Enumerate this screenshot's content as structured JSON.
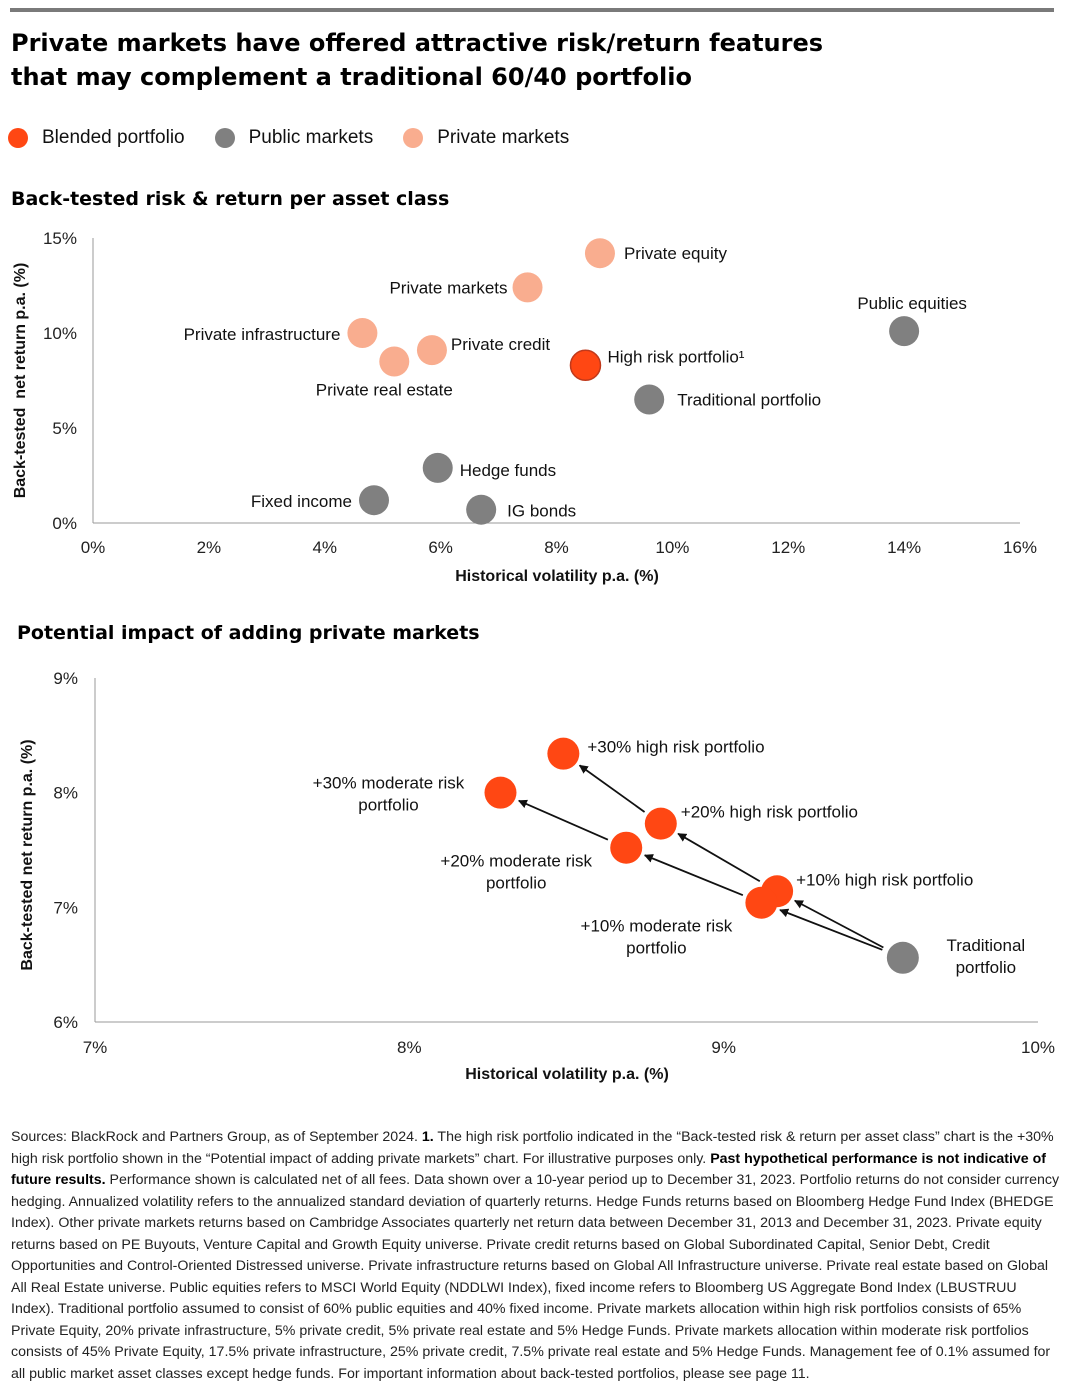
{
  "title_line1": "Private markets have offered attractive risk/return features",
  "title_line2": "that may complement a traditional 60/40 portfolio",
  "legend": [
    {
      "label": "Blended portfolio",
      "color": "#ff4713"
    },
    {
      "label": "Public markets",
      "color": "#808080"
    },
    {
      "label": "Private markets",
      "color": "#f9ad8f"
    }
  ],
  "colors": {
    "blended": "#ff4713",
    "public": "#808080",
    "private": "#f9ad8f"
  },
  "chart_data": [
    {
      "type": "scatter",
      "title": "Back-tested risk & return per asset class",
      "xlabel": "Historical volatility p.a. (%)",
      "ylabel": "Back-tested  net return p.a. (%)",
      "xlim": [
        0,
        16
      ],
      "ylim": [
        0,
        15
      ],
      "xticks": [
        0,
        2,
        4,
        6,
        8,
        10,
        12,
        14,
        16
      ],
      "xtick_labels": [
        "0%",
        "2%",
        "4%",
        "6%",
        "8%",
        "10%",
        "12%",
        "14%",
        "16%"
      ],
      "yticks": [
        0,
        5,
        10,
        15
      ],
      "ytick_labels": [
        "0%",
        "5%",
        "10%",
        "15%"
      ],
      "grid": false,
      "points": [
        {
          "label": "Private equity",
          "x": 8.75,
          "y": 14.2,
          "group": "private"
        },
        {
          "label": "Private markets",
          "x": 7.5,
          "y": 12.4,
          "group": "private"
        },
        {
          "label": "Public equities",
          "x": 14.0,
          "y": 10.1,
          "group": "public"
        },
        {
          "label": "Private infrastructure",
          "x": 4.65,
          "y": 10.0,
          "group": "private"
        },
        {
          "label": "Private credit",
          "x": 5.85,
          "y": 9.1,
          "group": "private"
        },
        {
          "label": "Private real estate",
          "x": 5.2,
          "y": 8.5,
          "group": "private"
        },
        {
          "label": "High risk portfolio¹",
          "x": 8.5,
          "y": 8.3,
          "group": "blended"
        },
        {
          "label": "Traditional portfolio",
          "x": 9.6,
          "y": 6.5,
          "group": "public"
        },
        {
          "label": "Hedge funds",
          "x": 5.95,
          "y": 2.9,
          "group": "public"
        },
        {
          "label": "Fixed income",
          "x": 4.85,
          "y": 1.2,
          "group": "public"
        },
        {
          "label": "IG bonds",
          "x": 6.7,
          "y": 0.7,
          "group": "public"
        }
      ]
    },
    {
      "type": "scatter",
      "title": "Potential impact of adding private markets",
      "xlabel": "Historical volatility p.a. (%)",
      "ylabel": "Back-tested net return p.a. (%)",
      "xlim": [
        7,
        10
      ],
      "ylim": [
        6,
        9
      ],
      "xticks": [
        7,
        8,
        9,
        10
      ],
      "xtick_labels": [
        "7%",
        "8%",
        "9%",
        "10%"
      ],
      "yticks": [
        6,
        7,
        8,
        9
      ],
      "ytick_labels": [
        "6%",
        "7%",
        "8%",
        "9%"
      ],
      "grid": false,
      "points": [
        {
          "label": "+30% high risk portfolio",
          "x": 8.49,
          "y": 8.34,
          "group": "blended"
        },
        {
          "label": "+30% moderate risk portfolio",
          "x": 8.29,
          "y": 8.0,
          "group": "blended"
        },
        {
          "label": "+20% high risk portfolio",
          "x": 8.8,
          "y": 7.73,
          "group": "blended"
        },
        {
          "label": "+20% moderate risk portfolio",
          "x": 8.69,
          "y": 7.52,
          "group": "blended"
        },
        {
          "label": "+10% high risk portfolio",
          "x": 9.17,
          "y": 7.14,
          "group": "blended"
        },
        {
          "label": "+10% moderate risk portfolio",
          "x": 9.12,
          "y": 7.04,
          "group": "blended"
        },
        {
          "label": "Traditional portfolio",
          "x": 9.57,
          "y": 6.56,
          "group": "public"
        }
      ],
      "arrows": [
        {
          "from": "Traditional portfolio",
          "to": "+10% high risk portfolio"
        },
        {
          "from": "Traditional portfolio",
          "to": "+10% moderate risk portfolio"
        },
        {
          "from": "+10% high risk portfolio",
          "to": "+20% high risk portfolio"
        },
        {
          "from": "+10% moderate risk portfolio",
          "to": "+20% moderate risk portfolio"
        },
        {
          "from": "+20% high risk portfolio",
          "to": "+30% high risk portfolio"
        },
        {
          "from": "+20% moderate risk portfolio",
          "to": "+30% moderate risk portfolio"
        }
      ]
    }
  ],
  "footnote": {
    "part1": "Sources: BlackRock and Partners Group, as of September 2024. ",
    "ref": "1.",
    "part2": " The high risk portfolio indicated in the “Back-tested risk & return per asset class” chart is the +30% high risk portfolio shown in the “Potential impact of adding private markets” chart. For illustrative purposes only. ",
    "bold": "Past hypothetical performance is not indicative of future results.",
    "part3": " Performance shown is calculated net of all fees. Data shown over a 10-year period up to December 31, 2023. Portfolio returns do not consider currency hedging. Annualized volatility refers to the annualized standard deviation of quarterly returns. Hedge Funds returns based on Bloomberg Hedge Fund Index (BHEDGE Index). Other private markets returns based on Cambridge Associates quarterly net return data between December 31, 2013 and December 31, 2023. Private equity returns based on PE Buyouts, Venture Capital and Growth Equity universe. Private credit returns based on Global Subordinated Capital, Senior Debt, Credit Opportunities and Control-Oriented Distressed universe. Private infrastructure returns based on Global All Infrastructure universe. Private real estate based on Global All Real Estate universe. Public equities refers to MSCI World Equity (NDDLWI Index), fixed income refers to Bloomberg US Aggregate Bond Index (LBUSTRUU Index). Traditional portfolio assumed to consist of 60% public equities and 40% fixed income. Private markets allocation within high risk portfolios consists of 65% Private Equity, 20% private infrastructure, 5% private credit, 5% private real estate and 5% Hedge Funds. Private markets allocation within moderate risk portfolios consists of 45% Private Equity, 17.5% private infrastructure, 25% private credit, 7.5% private real estate and 5% Hedge Funds. Management fee of 0.1% assumed for all public market asset classes except hedge funds. For important information about back-tested portfolios, please see page 11."
  }
}
